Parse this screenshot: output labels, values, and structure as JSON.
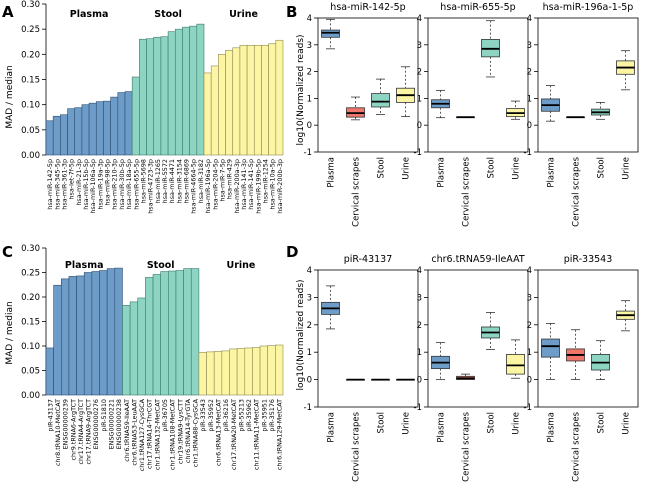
{
  "panels": {
    "A": {
      "letter": "A",
      "ylabel": "MAD / median",
      "groups": [
        "Plasma",
        "Stool",
        "Urine"
      ]
    },
    "B": {
      "letter": "B",
      "ylabel": "log10(Normalized reads)"
    },
    "C": {
      "letter": "C",
      "ylabel": "MAD / median",
      "groups": [
        "Plasma",
        "Stool",
        "Urine"
      ]
    },
    "D": {
      "letter": "D",
      "ylabel": "log10(Normalized reads)"
    }
  },
  "colors": {
    "plasma": "#6e9cc9",
    "cervical": "#f0756b",
    "stool": "#8dd4c3",
    "urine": "#fbf5a4"
  },
  "chart_data": [
    {
      "panel": "A",
      "type": "bar",
      "ylabel": "MAD / median",
      "ylim": [
        0,
        0.3
      ],
      "yticks": [
        "0.00",
        "0.05",
        "0.10",
        "0.15",
        "0.20",
        "0.25",
        "0.30"
      ],
      "groups": [
        {
          "name": "Plasma",
          "categories": [
            "hsa-miR-142-5p",
            "hsa-miR-345-5p",
            "hsa-miR-361-3p",
            "hsa-let-7f-5p",
            "hsa-miR-21-3p",
            "hsa-miR-15b-5p",
            "hsa-miR-106a-5p",
            "hsa-miR-19a-3p",
            "hsa-miR-98-5p",
            "hsa-miR-210-3p",
            "hsa-miR-30b-5p",
            "hsa-miR-18a-5p"
          ],
          "values": [
            0.068,
            0.077,
            0.08,
            0.092,
            0.094,
            0.1,
            0.103,
            0.106,
            0.107,
            0.115,
            0.124,
            0.126
          ]
        },
        {
          "name": "Stool",
          "categories": [
            "hsa-miR-655-5p",
            "hsa-miR-5698",
            "hsa-miR-4723-3p",
            "hsa-miR-1265",
            "hsa-miR-5572",
            "hsa-miR-4471",
            "hsa-miR-3154",
            "hsa-miR-6869",
            "hsa-miR-4664-5p",
            "hsa-miR-3182"
          ],
          "values": [
            0.155,
            0.23,
            0.231,
            0.234,
            0.235,
            0.245,
            0.25,
            0.254,
            0.256,
            0.26
          ]
        },
        {
          "name": "Urine",
          "categories": [
            "hsa-miR-196a-5p",
            "hsa-miR-204-5p",
            "hsa-miR-7-5p",
            "hsa-miR-429",
            "hsa-miR-200a-3p",
            "hsa-miR-141-3p",
            "hsa-miR-141-5p",
            "hsa-miR-199b-5p",
            "hsa-miR-1254",
            "hsa-miR-10a-5p",
            "hsa-miR-200b-3p"
          ],
          "values": [
            0.163,
            0.177,
            0.2,
            0.208,
            0.213,
            0.218,
            0.218,
            0.218,
            0.218,
            0.221,
            0.228
          ]
        }
      ]
    },
    {
      "panel": "C",
      "type": "bar",
      "ylabel": "MAD / median",
      "ylim": [
        0,
        0.3
      ],
      "yticks": [
        "0.00",
        "0.05",
        "0.10",
        "0.15",
        "0.20",
        "0.25",
        "0.30"
      ],
      "groups": [
        {
          "name": "Plasma",
          "categories": [
            "piR-43137",
            "chr8.tRNA10-MetCAT",
            "ENSG00000239",
            "chr9.tRNA6-ArgTCT",
            "chr17.tRNA4-ArgTCT",
            "chr17.tRNA9-ArgTCT",
            "ENSG00000276",
            "piR-51810",
            "ENSG00000221",
            "ENSG00000238"
          ],
          "values": [
            0.096,
            0.224,
            0.237,
            0.242,
            0.243,
            0.25,
            0.252,
            0.254,
            0.258,
            0.259
          ]
        },
        {
          "name": "Stool",
          "categories": [
            "chr6.tRNA59-IleAAT",
            "chr6.tRNA53-LeuAAT",
            "chr1.tRNA127-CysGCA",
            "chr17.tRNA14-ThrCGT",
            "chr1.tRNA132-MetCAT",
            "piR-36705",
            "chr1.tRNA108-MetCAT",
            "chr19.tRNA9-LysCTT",
            "chr6.tRNA14-TyrGTA",
            "chr1.tRNA88-CysGCA"
          ],
          "values": [
            0.183,
            0.19,
            0.198,
            0.24,
            0.246,
            0.252,
            0.253,
            0.254,
            0.258,
            0.258
          ]
        },
        {
          "name": "Urine",
          "categories": [
            "piR-33543",
            "piR-35952",
            "chr6.tRNA13-MetCAT",
            "piR-36216",
            "chr17.tRNA20-MetCAT",
            "piR-55213",
            "piR-35962",
            "chr11.tRNA11-MetCAT",
            "piR-35951",
            "piR-35176",
            "chr6.tRNA129-MetCAT"
          ],
          "values": [
            0.087,
            0.088,
            0.089,
            0.09,
            0.094,
            0.095,
            0.096,
            0.097,
            0.1,
            0.101,
            0.102
          ]
        }
      ]
    },
    {
      "panel": "B",
      "type": "boxplot",
      "ylabel": "log10(Normalized reads)",
      "ylim": [
        -1,
        4
      ],
      "categories": [
        "Plasma",
        "Cervical scrapes",
        "Stool",
        "Urine"
      ],
      "subplots": [
        {
          "title": "hsa-miR-142-5p",
          "boxes": [
            {
              "min": 2.85,
              "q1": 3.28,
              "median": 3.45,
              "q3": 3.55,
              "max": 3.95
            },
            {
              "min": 0.2,
              "q1": 0.3,
              "median": 0.45,
              "q3": 0.65,
              "max": 1.05
            },
            {
              "min": 0.4,
              "q1": 0.68,
              "median": 0.88,
              "q3": 1.18,
              "max": 1.72
            },
            {
              "min": 0.32,
              "q1": 0.85,
              "median": 1.12,
              "q3": 1.38,
              "max": 2.18
            }
          ]
        },
        {
          "title": "hsa-miR-655-5p",
          "boxes": [
            {
              "min": 0.28,
              "q1": 0.65,
              "median": 0.8,
              "q3": 0.95,
              "max": 1.3
            },
            {
              "min": 0.3,
              "q1": 0.3,
              "median": 0.3,
              "q3": 0.3,
              "max": 0.3
            },
            {
              "min": 1.8,
              "q1": 2.55,
              "median": 2.85,
              "q3": 3.2,
              "max": 3.9
            },
            {
              "min": 0.22,
              "q1": 0.32,
              "median": 0.45,
              "q3": 0.62,
              "max": 0.9
            }
          ]
        },
        {
          "title": "hsa-miR-196a-1-5p",
          "boxes": [
            {
              "min": 0.15,
              "q1": 0.52,
              "median": 0.75,
              "q3": 0.98,
              "max": 1.48
            },
            {
              "min": 0.3,
              "q1": 0.3,
              "median": 0.3,
              "q3": 0.3,
              "max": 0.3
            },
            {
              "min": 0.22,
              "q1": 0.38,
              "median": 0.48,
              "q3": 0.6,
              "max": 0.85
            },
            {
              "min": 1.32,
              "q1": 1.9,
              "median": 2.15,
              "q3": 2.4,
              "max": 2.78
            }
          ]
        }
      ]
    },
    {
      "panel": "D",
      "type": "boxplot",
      "ylabel": "log10(Normalized reads)",
      "ylim": [
        -1,
        4
      ],
      "categories": [
        "Plasma",
        "Cervical scrapes",
        "Stool",
        "Urine"
      ],
      "subplots": [
        {
          "title": "piR-43137",
          "boxes": [
            {
              "min": 1.85,
              "q1": 2.38,
              "median": 2.6,
              "q3": 2.82,
              "max": 3.42
            },
            {
              "min": 0,
              "q1": 0,
              "median": 0,
              "q3": 0,
              "max": 0
            },
            {
              "min": 0,
              "q1": 0,
              "median": 0,
              "q3": 0,
              "max": 0
            },
            {
              "min": 0,
              "q1": 0,
              "median": 0,
              "q3": 0,
              "max": 0
            }
          ]
        },
        {
          "title": "chr6.tRNA59-IleAAT",
          "boxes": [
            {
              "min": 0.0,
              "q1": 0.4,
              "median": 0.62,
              "q3": 0.85,
              "max": 1.35
            },
            {
              "min": 0.0,
              "q1": 0.0,
              "median": 0.05,
              "q3": 0.12,
              "max": 0.2
            },
            {
              "min": 1.1,
              "q1": 1.52,
              "median": 1.72,
              "q3": 1.92,
              "max": 2.45
            },
            {
              "min": 0.05,
              "q1": 0.2,
              "median": 0.52,
              "q3": 0.92,
              "max": 1.45
            }
          ]
        },
        {
          "title": "piR-33543",
          "boxes": [
            {
              "min": 0.0,
              "q1": 0.82,
              "median": 1.22,
              "q3": 1.48,
              "max": 2.05
            },
            {
              "min": 0.0,
              "q1": 0.68,
              "median": 0.9,
              "q3": 1.12,
              "max": 1.82
            },
            {
              "min": 0.0,
              "q1": 0.35,
              "median": 0.62,
              "q3": 0.92,
              "max": 1.42
            },
            {
              "min": 1.78,
              "q1": 2.2,
              "median": 2.35,
              "q3": 2.5,
              "max": 2.88
            }
          ]
        }
      ]
    }
  ]
}
